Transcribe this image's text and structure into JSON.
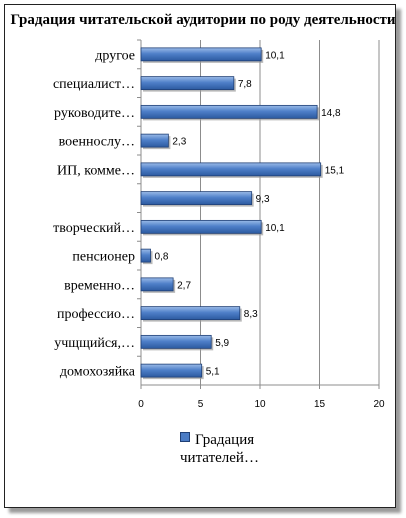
{
  "chart_data": {
    "type": "bar",
    "orientation": "horizontal",
    "title": "Градация читательской аудитории по роду деятельности",
    "categories": [
      "домохозяйка",
      "учщщийся,…",
      "профессио…",
      "временно…",
      "пенсионер",
      "творческий…",
      "",
      "ИП, комме…",
      "военнослу…",
      "руководите…",
      "специалист…",
      "другое"
    ],
    "series": [
      {
        "name": "Градация читателей…",
        "values": [
          5.1,
          5.9,
          8.3,
          2.7,
          0.8,
          10.1,
          9.3,
          15.1,
          2.3,
          14.8,
          7.8,
          10.1
        ],
        "color": "#4a7bc4"
      }
    ],
    "data_labels": [
      "5,1",
      "5,9",
      "8,3",
      "2,7",
      "0,8",
      "10,1",
      "9,3",
      "15,1",
      "2,3",
      "14,8",
      "7,8",
      "10,1"
    ],
    "xlim": [
      0,
      20
    ],
    "xticks": [
      "0",
      "5",
      "10",
      "15",
      "20"
    ],
    "grid": true,
    "legend_position": "bottom-right"
  }
}
